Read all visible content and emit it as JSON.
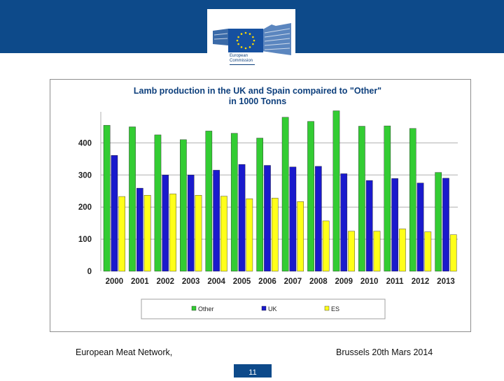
{
  "header": {
    "logo_line1": "European",
    "logo_line2": "Commission"
  },
  "colors": {
    "header_bg": "#0d4a8a",
    "title": "#0d3f7c"
  },
  "chart_data": {
    "type": "bar",
    "title_line1": "Lamb production in the UK and Spain compaired to \"Other\"",
    "title_line2": "in 1000 Tonns",
    "categories": [
      "2000",
      "2001",
      "2002",
      "2003",
      "2004",
      "2005",
      "2006",
      "2007",
      "2008",
      "2009",
      "2010",
      "2011",
      "2012",
      "2013"
    ],
    "series": [
      {
        "name": "Other",
        "color": "#33cc33",
        "values": [
          455,
          450,
          425,
          410,
          437,
          430,
          415,
          480,
          467,
          500,
          452,
          453,
          445,
          308
        ]
      },
      {
        "name": "UK",
        "color": "#1a1acc",
        "values": [
          361,
          259,
          300,
          300,
          315,
          333,
          330,
          325,
          327,
          304,
          283,
          289,
          275,
          290
        ]
      },
      {
        "name": "ES",
        "color": "#ffff1a",
        "values": [
          233,
          237,
          241,
          237,
          234,
          226,
          228,
          217,
          157,
          125,
          125,
          132,
          123,
          114
        ]
      }
    ],
    "yticks": [
      0,
      100,
      200,
      300,
      400
    ],
    "ylim": [
      0,
      500
    ],
    "grid": true,
    "legend": "bottom"
  },
  "footer": {
    "left": "European Meat Network,",
    "right": "Brussels 20th Mars 2014",
    "page_number": "11"
  }
}
